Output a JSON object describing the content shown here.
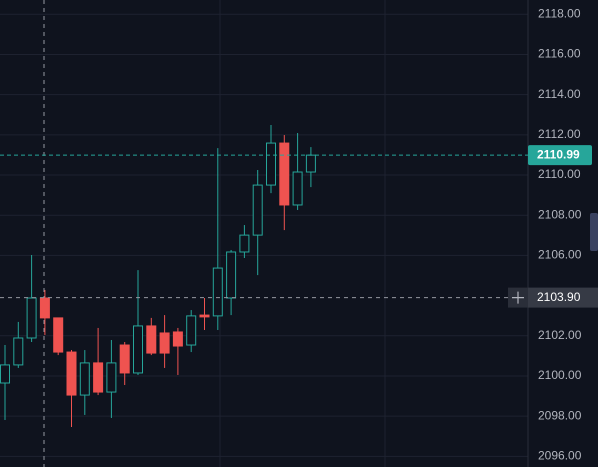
{
  "chart_data": {
    "type": "candlestick",
    "categories": [
      null,
      null,
      null,
      null,
      null,
      null,
      null,
      null,
      null,
      null,
      null,
      null,
      null,
      null,
      null,
      null,
      null,
      null,
      null,
      null,
      null,
      null,
      null,
      null
    ],
    "open": [
      2099.65,
      2100.55,
      2101.89,
      2103.88,
      2102.89,
      2101.19,
      2099.05,
      2100.65,
      2099.2,
      2101.54,
      2100.15,
      2102.49,
      2102.14,
      2102.19,
      2101.54,
      2103.03,
      2102.99,
      2103.88,
      2106.17,
      2107.01,
      2109.5,
      2111.59,
      2108.51,
      2110.15
    ],
    "high": [
      2101.54,
      2102.69,
      2106.02,
      2104.28,
      2102.89,
      2101.29,
      2101.29,
      2102.39,
      2101.79,
      2101.69,
      2105.27,
      2102.89,
      2103.03,
      2102.39,
      2103.28,
      2103.88,
      2111.34,
      2106.27,
      2107.51,
      2110.25,
      2112.49,
      2111.99,
      2112.09,
      2111.39
    ],
    "low": [
      2097.81,
      2100.4,
      2101.69,
      2102.04,
      2101.04,
      2097.46,
      2098.06,
      2099.05,
      2097.91,
      2099.55,
      2100.05,
      2101.04,
      2100.4,
      2100.05,
      2101.19,
      2102.29,
      2102.29,
      2103.03,
      2105.87,
      2105.02,
      2109.1,
      2107.26,
      2108.26,
      2109.4
    ],
    "close": [
      2100.55,
      2101.89,
      2103.88,
      2102.89,
      2101.19,
      2099.05,
      2100.65,
      2099.2,
      2100.65,
      2100.15,
      2102.49,
      2101.14,
      2101.14,
      2101.49,
      2102.99,
      2102.94,
      2105.37,
      2106.17,
      2107.01,
      2109.5,
      2111.59,
      2108.51,
      2110.15,
      2110.99
    ],
    "colors": {
      "up": "#26a69a",
      "down": "#ef5350"
    },
    "ylim": [
      2095.47,
      2118.71
    ],
    "yticks": [
      {
        "value": 2096,
        "label": "2096.00"
      },
      {
        "value": 2098,
        "label": "2098.00"
      },
      {
        "value": 2100,
        "label": "2100.00"
      },
      {
        "value": 2102,
        "label": "2102.00"
      },
      {
        "value": 2106,
        "label": "2106.00"
      },
      {
        "value": 2108,
        "label": "2108.00"
      },
      {
        "value": 2110,
        "label": "2110.00"
      },
      {
        "value": 2112,
        "label": "2112.00"
      },
      {
        "value": 2114,
        "label": "2114.00"
      },
      {
        "value": 2116,
        "label": "2116.00"
      },
      {
        "value": 2118,
        "label": "2118.00"
      }
    ],
    "grid": true,
    "last_price": 2110.99,
    "crosshair_price": {
      "value": 2103.9,
      "label": "2103.90"
    }
  }
}
